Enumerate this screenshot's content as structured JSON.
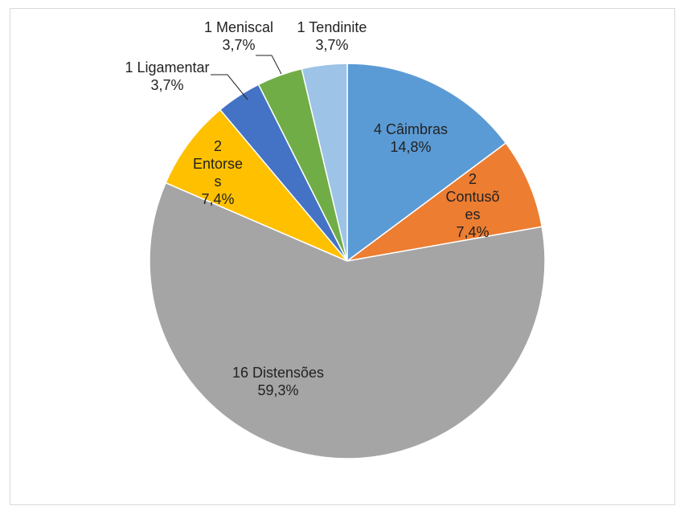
{
  "chart_data": {
    "type": "pie",
    "start_angle_deg": 0,
    "direction": "clockwise",
    "slices": [
      {
        "count": "4",
        "name": "Câimbras",
        "value": 4,
        "percent": "14,8%",
        "color": "#5b9bd5",
        "label_lines": [
          "4 Câimbras",
          "14,8%"
        ]
      },
      {
        "count": "2",
        "name": "Contusões",
        "value": 2,
        "percent": "7,4%",
        "color": "#ed7d31",
        "label_lines": [
          "2",
          "Contusõ",
          "es",
          "7,4%"
        ]
      },
      {
        "count": "16",
        "name": "Distensões",
        "value": 16,
        "percent": "59,3%",
        "color": "#a5a5a5",
        "label_lines": [
          "16 Distensões",
          "59,3%"
        ]
      },
      {
        "count": "2",
        "name": "Entorses",
        "value": 2,
        "percent": "7,4%",
        "color": "#ffc000",
        "label_lines": [
          "2",
          "Entorse",
          "s",
          "7,4%"
        ]
      },
      {
        "count": "1",
        "name": "Ligamentar",
        "value": 1,
        "percent": "3,7%",
        "color": "#4472c4",
        "label_lines": [
          "1 Ligamentar",
          "3,7%"
        ]
      },
      {
        "count": "1",
        "name": "Meniscal",
        "value": 1,
        "percent": "3,7%",
        "color": "#70ad47",
        "label_lines": [
          "1 Meniscal",
          "3,7%"
        ]
      },
      {
        "count": "1",
        "name": "Tendinite",
        "value": 1,
        "percent": "3,7%",
        "color": "#9dc3e6",
        "label_lines": [
          "1 Tendinite",
          "3,7%"
        ]
      }
    ]
  }
}
